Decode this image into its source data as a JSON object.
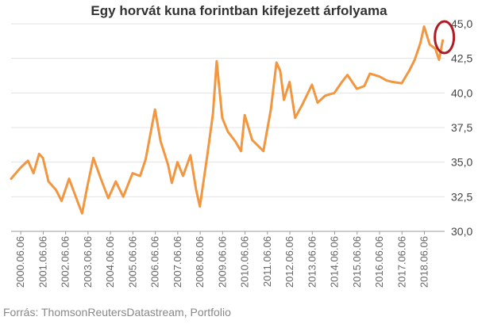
{
  "chart_data": {
    "type": "line",
    "title": "Egy horvát kuna forintban kifejezett árfolyama",
    "xlabel": "",
    "ylabel": "",
    "ylim": [
      30,
      45
    ],
    "yticks": [
      "30,0",
      "32,5",
      "35,0",
      "37,5",
      "40,0",
      "42,5",
      "45,0"
    ],
    "x_tick_labels": [
      "2000.06.06",
      "2001.06.06",
      "2002.06.06",
      "2003.06.06",
      "2004.06.06",
      "2005.06.06",
      "2006.06.06",
      "2007.06.06",
      "2008.06.06",
      "2009.06.06",
      "2010.06.06",
      "2011.06.06",
      "2012.06.06",
      "2013.06.06",
      "2014.06.06",
      "2015.06.06",
      "2016.06.06",
      "2017.06.06",
      "2018.06.06"
    ],
    "x_range": [
      "2000-01-01",
      "2019-05-01"
    ],
    "grid": "horizontal",
    "line_color": "#f2963f",
    "highlight_color": "#b01c24",
    "highlight_note": "red ellipse around the latest values",
    "series": [
      {
        "values": [
          [
            "2000-01",
            33.8
          ],
          [
            "2000-06",
            34.6
          ],
          [
            "2000-10",
            35.1
          ],
          [
            "2001-01",
            34.2
          ],
          [
            "2001-04",
            35.6
          ],
          [
            "2001-06",
            35.3
          ],
          [
            "2001-09",
            33.6
          ],
          [
            "2002-01",
            33.0
          ],
          [
            "2002-04",
            32.2
          ],
          [
            "2002-08",
            33.8
          ],
          [
            "2003-01",
            32.0
          ],
          [
            "2003-03",
            31.3
          ],
          [
            "2003-06",
            33.4
          ],
          [
            "2003-09",
            35.3
          ],
          [
            "2004-01",
            33.8
          ],
          [
            "2004-05",
            32.4
          ],
          [
            "2004-09",
            33.6
          ],
          [
            "2005-01",
            32.5
          ],
          [
            "2005-06",
            34.2
          ],
          [
            "2005-10",
            34.0
          ],
          [
            "2006-01",
            35.2
          ],
          [
            "2006-06",
            38.8
          ],
          [
            "2006-09",
            36.5
          ],
          [
            "2007-01",
            34.8
          ],
          [
            "2007-03",
            33.5
          ],
          [
            "2007-06",
            35.0
          ],
          [
            "2007-09",
            34.0
          ],
          [
            "2008-01",
            35.5
          ],
          [
            "2008-04",
            33.0
          ],
          [
            "2008-06",
            31.8
          ],
          [
            "2008-10",
            35.5
          ],
          [
            "2009-01",
            38.5
          ],
          [
            "2009-03",
            42.3
          ],
          [
            "2009-06",
            38.2
          ],
          [
            "2009-09",
            37.2
          ],
          [
            "2010-01",
            36.5
          ],
          [
            "2010-04",
            35.8
          ],
          [
            "2010-06",
            38.4
          ],
          [
            "2010-10",
            36.6
          ],
          [
            "2011-01",
            36.2
          ],
          [
            "2011-04",
            35.8
          ],
          [
            "2011-08",
            38.8
          ],
          [
            "2011-11",
            42.2
          ],
          [
            "2012-01",
            41.6
          ],
          [
            "2012-03",
            39.5
          ],
          [
            "2012-06",
            40.8
          ],
          [
            "2012-09",
            38.2
          ],
          [
            "2013-01",
            39.2
          ],
          [
            "2013-06",
            40.6
          ],
          [
            "2013-09",
            39.3
          ],
          [
            "2014-01",
            39.8
          ],
          [
            "2014-06",
            40.0
          ],
          [
            "2014-10",
            40.8
          ],
          [
            "2015-01",
            41.3
          ],
          [
            "2015-06",
            40.3
          ],
          [
            "2015-10",
            40.5
          ],
          [
            "2016-01",
            41.4
          ],
          [
            "2016-06",
            41.2
          ],
          [
            "2016-10",
            40.9
          ],
          [
            "2017-01",
            40.8
          ],
          [
            "2017-06",
            40.7
          ],
          [
            "2017-10",
            41.6
          ],
          [
            "2018-01",
            42.4
          ],
          [
            "2018-04",
            43.6
          ],
          [
            "2018-06",
            44.8
          ],
          [
            "2018-09",
            43.5
          ],
          [
            "2018-12",
            43.2
          ],
          [
            "2019-02",
            42.4
          ],
          [
            "2019-04",
            43.8
          ]
        ]
      }
    ]
  },
  "source_text": "Forrás: ThomsonReutersDatastream, Portfolio"
}
